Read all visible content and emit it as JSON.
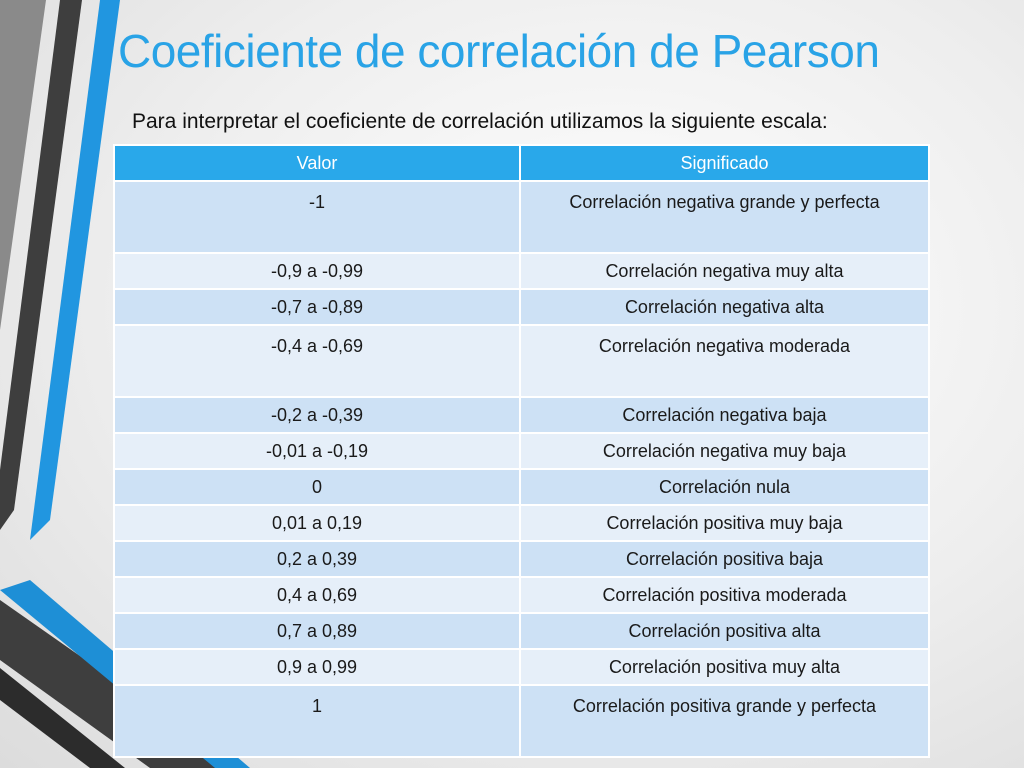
{
  "slide": {
    "title": "Coeficiente de correlación de Pearson",
    "subtitle": "Para interpretar el coeficiente de correlación utilizamos la siguiente escala:"
  },
  "colors": {
    "title": "#29a3e6",
    "header_bg": "#29a8ea",
    "row_dark": "#cde1f5",
    "row_light": "#e6eff9",
    "accent_blue": "#1e8fd6",
    "accent_gray": "#4a4a4a"
  },
  "table": {
    "headers": [
      "Valor",
      "Significado"
    ],
    "rows": [
      [
        "-1",
        "Correlación negativa grande y perfecta"
      ],
      [
        "-0,9 a -0,99",
        "Correlación negativa muy alta"
      ],
      [
        "-0,7 a -0,89",
        "Correlación negativa alta"
      ],
      [
        "-0,4 a -0,69",
        "Correlación negativa moderada"
      ],
      [
        "-0,2 a -0,39",
        "Correlación negativa baja"
      ],
      [
        "-0,01 a -0,19",
        "Correlación negativa muy baja"
      ],
      [
        "0",
        "Correlación nula"
      ],
      [
        "0,01 a 0,19",
        "Correlación positiva muy baja"
      ],
      [
        "0,2 a 0,39",
        "Correlación positiva baja"
      ],
      [
        "0,4 a 0,69",
        "Correlación positiva moderada"
      ],
      [
        "0,7 a 0,89",
        "Correlación positiva alta"
      ],
      [
        "0,9 a 0,99",
        "Correlación positiva muy alta"
      ],
      [
        "1",
        "Correlación positiva grande y perfecta"
      ]
    ]
  }
}
